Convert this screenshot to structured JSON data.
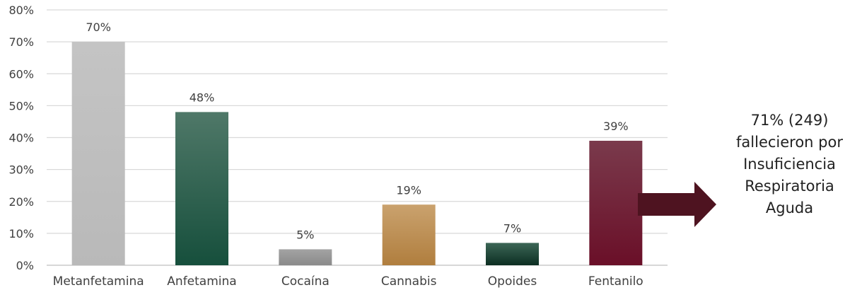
{
  "chart_data": {
    "type": "bar",
    "categories": [
      "Metanfetamina",
      "Anfetamina",
      "Cocaína",
      "Cannabis",
      "Opoides",
      "Fentanilo"
    ],
    "values": [
      70,
      48,
      5,
      19,
      7,
      39
    ],
    "data_labels": [
      "70%",
      "48%",
      "5%",
      "19%",
      "7%",
      "39%"
    ],
    "ylim": [
      0,
      80
    ],
    "yticks": [
      0,
      10,
      20,
      30,
      40,
      50,
      60,
      70,
      80
    ],
    "ytick_labels": [
      "0%",
      "10%",
      "20%",
      "30%",
      "40%",
      "50%",
      "60%",
      "70%",
      "80%"
    ],
    "grid": true,
    "title": "",
    "xlabel": "",
    "ylabel": "",
    "bar_colors": [
      [
        "#c4c4c4",
        "#b9b9b9"
      ],
      [
        "#4f7868",
        "#164f3c"
      ],
      [
        "#a3a3a3",
        "#8a8a8a"
      ],
      [
        "#caa26e",
        "#b07e3e"
      ],
      [
        "#3c6656",
        "#0c2e22"
      ],
      [
        "#7a3a4c",
        "#6a0f28"
      ]
    ]
  },
  "annotation": {
    "lines": [
      "71% (249)",
      "fallecieron por",
      "Insuficiencia",
      "Respiratoria",
      "Aguda"
    ],
    "arrow_color": "#4e1320"
  }
}
